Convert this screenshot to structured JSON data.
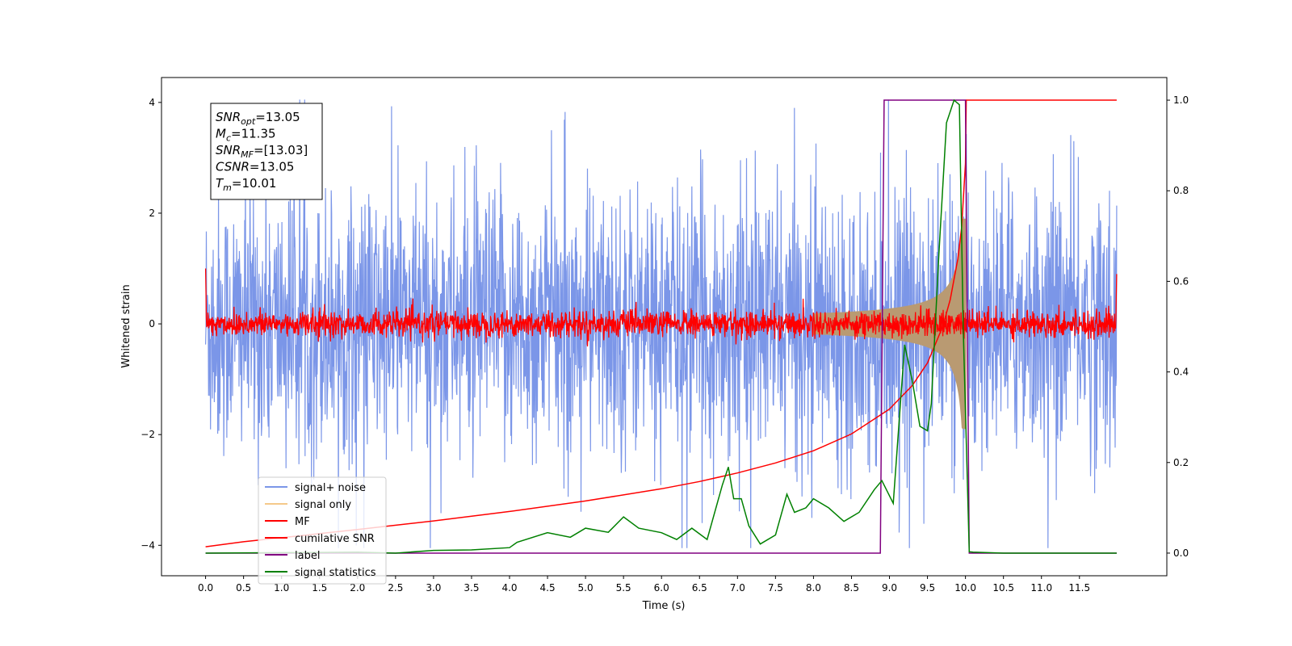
{
  "chart_data": {
    "type": "line",
    "xlabel": "Time (s)",
    "ylabel": "Whitened strain",
    "xlim": [
      -0.58,
      12.65
    ],
    "ylim": [
      -4.55,
      4.45
    ],
    "y2lim": [
      -0.05,
      1.05
    ],
    "x_ticks": [
      "0.0",
      "0.5",
      "1.0",
      "1.5",
      "2.0",
      "2.5",
      "3.0",
      "3.5",
      "4.0",
      "4.5",
      "5.0",
      "5.5",
      "6.0",
      "6.5",
      "7.0",
      "7.5",
      "8.0",
      "8.5",
      "9.0",
      "9.5",
      "10.0",
      "10.5",
      "11.0",
      "11.5"
    ],
    "y_ticks": [
      "4",
      "2",
      "0",
      "−2",
      "−4"
    ],
    "y2_ticks": [
      "1.0",
      "0.8",
      "0.6",
      "0.4",
      "0.2",
      "0.0"
    ],
    "annotation": [
      {
        "base": "SNR",
        "sub": "opt",
        "value": "=13.05"
      },
      {
        "base": "M",
        "sub": "c",
        "value": "=11.35"
      },
      {
        "base": "SNR",
        "sub": "MF",
        "value": "=[13.03]"
      },
      {
        "base": "CSNR",
        "sub": "",
        "value": "=13.05"
      },
      {
        "base": "T",
        "sub": "m",
        "value": "=10.01"
      }
    ],
    "legend": {
      "location": "lower-left",
      "entries": [
        {
          "label": "signal+ noise",
          "color": "#7b96e8"
        },
        {
          "label": "signal only",
          "color": "#f5c98a"
        },
        {
          "label": "MF",
          "color": "#ff0000"
        },
        {
          "label": "cumilative SNR",
          "color": "#ff0000"
        },
        {
          "label": "label",
          "color": "#800080"
        },
        {
          "label": "signal statistics",
          "color": "#008000"
        }
      ]
    },
    "series": [
      {
        "name": "signal+ noise",
        "axis": "left",
        "description": "noise band",
        "x_range": [
          0,
          11.99
        ],
        "amplitude": 1.2,
        "color": "#7b96e8"
      },
      {
        "name": "signal only",
        "axis": "left",
        "description": "chirp envelope growing to merger",
        "t_merge": 10.01,
        "peak_amplitude": 1.9,
        "color": "#b99a72"
      },
      {
        "name": "MF",
        "axis": "left",
        "x_range": [
          0,
          11.99
        ],
        "amplitude": 0.12,
        "color": "#ff0000"
      },
      {
        "name": "cumilative SNR",
        "axis": "right",
        "color": "#ff0000",
        "x": [
          0.0,
          0.5,
          1.0,
          2.0,
          3.0,
          4.0,
          5.0,
          6.0,
          6.5,
          7.0,
          7.5,
          8.0,
          8.5,
          9.0,
          9.3,
          9.5,
          9.7,
          9.8,
          9.9,
          9.95,
          10.0,
          10.01,
          11.99
        ],
        "y": [
          0.014,
          0.025,
          0.034,
          0.052,
          0.071,
          0.092,
          0.115,
          0.142,
          0.158,
          0.177,
          0.199,
          0.226,
          0.263,
          0.318,
          0.37,
          0.42,
          0.5,
          0.56,
          0.65,
          0.72,
          0.86,
          1.0,
          1.0
        ]
      },
      {
        "name": "label",
        "axis": "right",
        "color": "#800080",
        "x": [
          0.0,
          8.88,
          8.93,
          10.0,
          10.05,
          11.99
        ],
        "y": [
          0.0,
          0.0,
          1.0,
          1.0,
          0.0,
          0.0
        ]
      },
      {
        "name": "signal statistics",
        "axis": "right",
        "color": "#008000",
        "x": [
          0.0,
          1.0,
          2.0,
          2.5,
          3.0,
          3.5,
          4.0,
          4.1,
          4.5,
          4.8,
          5.0,
          5.3,
          5.5,
          5.7,
          6.0,
          6.2,
          6.4,
          6.6,
          6.8,
          6.88,
          6.95,
          7.05,
          7.15,
          7.3,
          7.5,
          7.65,
          7.75,
          7.9,
          8.0,
          8.2,
          8.4,
          8.6,
          8.8,
          8.9,
          9.05,
          9.2,
          9.3,
          9.4,
          9.5,
          9.55,
          9.65,
          9.75,
          9.85,
          9.92,
          9.97,
          10.05,
          10.1,
          10.5,
          11.99
        ],
        "y": [
          0.0,
          0.001,
          0.002,
          0.0,
          0.006,
          0.007,
          0.012,
          0.024,
          0.045,
          0.035,
          0.055,
          0.046,
          0.08,
          0.055,
          0.045,
          0.03,
          0.055,
          0.03,
          0.15,
          0.19,
          0.12,
          0.12,
          0.06,
          0.02,
          0.04,
          0.13,
          0.09,
          0.1,
          0.12,
          0.1,
          0.07,
          0.09,
          0.14,
          0.16,
          0.11,
          0.46,
          0.38,
          0.28,
          0.27,
          0.33,
          0.66,
          0.95,
          1.0,
          0.99,
          0.5,
          0.003,
          0.002,
          0.0,
          0.0
        ]
      }
    ]
  }
}
